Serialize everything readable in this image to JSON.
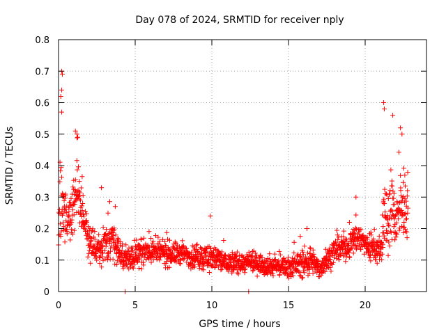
{
  "chart_data": {
    "type": "scatter",
    "title": "Day 078 of 2024, SRMTID for receiver nply",
    "xlabel": "GPS time / hours",
    "ylabel": "SRMTID / TECUs",
    "xlim": [
      0,
      24
    ],
    "ylim": [
      0,
      0.8
    ],
    "xticks": [
      0,
      5,
      10,
      15,
      20
    ],
    "xtick_labels": [
      "0",
      "5",
      "10",
      "15",
      "20"
    ],
    "yticks": [
      0,
      0.1,
      0.2,
      0.3,
      0.4,
      0.5,
      0.6,
      0.7,
      0.8
    ],
    "ytick_labels": [
      "0",
      "0.1",
      "0.2",
      "0.3",
      "0.4",
      "0.5",
      "0.6",
      "0.7",
      "0.8"
    ],
    "grid": true,
    "marker": "+",
    "colors": {
      "points": "#ff0000",
      "grid": "#a0a0a0",
      "axes": "#000000"
    },
    "envelope": {
      "x": [
        0,
        0.15,
        0.3,
        0.6,
        1.0,
        1.2,
        1.5,
        2.0,
        2.5,
        3.0,
        3.5,
        4.0,
        4.5,
        5.0,
        6.0,
        7.0,
        8.0,
        9.0,
        10.0,
        11.0,
        12.0,
        13.0,
        14.0,
        15.0,
        16.0,
        16.5,
        17.0,
        17.5,
        18.0,
        19.0,
        19.5,
        20.0,
        20.5,
        21.0,
        21.3,
        21.6,
        22.0,
        22.4,
        22.8
      ],
      "mean": [
        0.15,
        0.32,
        0.27,
        0.22,
        0.3,
        0.34,
        0.26,
        0.16,
        0.13,
        0.15,
        0.17,
        0.12,
        0.1,
        0.12,
        0.13,
        0.12,
        0.12,
        0.11,
        0.11,
        0.09,
        0.09,
        0.09,
        0.08,
        0.08,
        0.09,
        0.1,
        0.07,
        0.1,
        0.13,
        0.15,
        0.18,
        0.15,
        0.14,
        0.13,
        0.22,
        0.26,
        0.24,
        0.26,
        0.27
      ],
      "spread": [
        0.05,
        0.2,
        0.1,
        0.08,
        0.1,
        0.12,
        0.08,
        0.06,
        0.05,
        0.07,
        0.06,
        0.05,
        0.04,
        0.045,
        0.045,
        0.045,
        0.04,
        0.04,
        0.05,
        0.04,
        0.035,
        0.035,
        0.035,
        0.035,
        0.05,
        0.05,
        0.03,
        0.04,
        0.045,
        0.05,
        0.06,
        0.05,
        0.05,
        0.05,
        0.15,
        0.13,
        0.12,
        0.12,
        0.1
      ]
    },
    "notable_points": [
      {
        "x": 0.2,
        "y": 0.7
      },
      {
        "x": 0.25,
        "y": 0.69
      },
      {
        "x": 0.2,
        "y": 0.64
      },
      {
        "x": 0.15,
        "y": 0.62
      },
      {
        "x": 0.2,
        "y": 0.57
      },
      {
        "x": 1.1,
        "y": 0.51
      },
      {
        "x": 1.2,
        "y": 0.5
      },
      {
        "x": 1.25,
        "y": 0.49
      },
      {
        "x": 2.8,
        "y": 0.33
      },
      {
        "x": 3.7,
        "y": 0.27
      },
      {
        "x": 9.9,
        "y": 0.24
      },
      {
        "x": 16.2,
        "y": 0.2
      },
      {
        "x": 19.4,
        "y": 0.3
      },
      {
        "x": 21.2,
        "y": 0.6
      },
      {
        "x": 21.25,
        "y": 0.58
      },
      {
        "x": 21.8,
        "y": 0.56
      },
      {
        "x": 22.3,
        "y": 0.52
      },
      {
        "x": 22.4,
        "y": 0.5
      },
      {
        "x": 4.35,
        "y": 0.0
      },
      {
        "x": 12.4,
        "y": 0.0
      }
    ],
    "n_points": 1800
  }
}
